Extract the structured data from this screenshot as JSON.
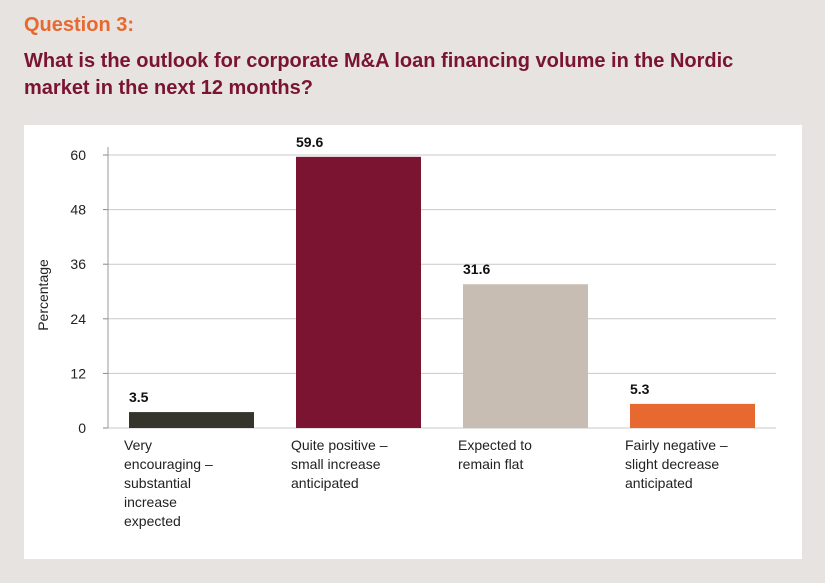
{
  "header": {
    "question_label": "Question 3:",
    "question_text": "What is the outlook for corporate M&A loan financing volume in the Nordic market in the next 12 months?"
  },
  "chart_data": {
    "type": "bar",
    "categories": [
      "Very encouraging – substantial increase expected",
      "Quite positive – small increase anticipated",
      "Expected to remain flat",
      "Fairly negative – slight decrease anticipated"
    ],
    "category_lines": [
      [
        "Very",
        "encouraging –",
        "substantial",
        "increase",
        "expected"
      ],
      [
        "Quite positive –",
        "small increase",
        "anticipated"
      ],
      [
        "Expected to",
        "remain flat"
      ],
      [
        "Fairly negative –",
        "slight decrease",
        "anticipated"
      ]
    ],
    "values": [
      3.5,
      59.6,
      31.6,
      5.3
    ],
    "value_labels": [
      "3.5",
      "59.6",
      "31.6",
      "5.3"
    ],
    "colors": [
      "#35352e",
      "#7a1430",
      "#c8bdb3",
      "#e8692f"
    ],
    "ylabel": "Percentage",
    "ylim": [
      0,
      60
    ],
    "yticks": [
      0,
      12,
      24,
      36,
      48,
      60
    ],
    "grid": true,
    "gridColor": "#c9c9c9"
  }
}
